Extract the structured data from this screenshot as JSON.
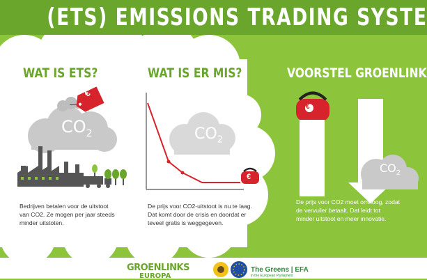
{
  "title": "(ETS) EMISSIONS TRADING SYSTEM",
  "sections": [
    {
      "heading": "WAT IS ETS?",
      "body_lines": [
        "Bedrijven betalen voor de uitstoot",
        "van CO2. Ze mogen per jaar steeds",
        "minder uitstoten."
      ]
    },
    {
      "heading": "WAT IS ER MIS?",
      "body_lines": [
        "De prijs voor CO2-uitstoot is nu te laag.",
        "Dat komt door de crisis en doordat er",
        "teveel gratis is weggegeven."
      ]
    },
    {
      "heading": "VOORSTEL GROENLINKS:",
      "body_lines": [
        "De prijs voor CO2 moet omhoog, zodat",
        "de vervuiler betaalt. Dat leidt tot",
        "minder uitstoot en meer innovatie."
      ]
    }
  ],
  "illustration": {
    "co2_label_main": "CO",
    "co2_subscript": "2",
    "euro_symbol": "€"
  },
  "footer": {
    "logo_groenlinks": "GROENLINKS",
    "logo_europa": "EUROPA",
    "greens_efa": "The Greens | EFA",
    "greens_sub": "in the European Parliament"
  },
  "colors": {
    "green_dark": "#6aa52c",
    "green_light": "#8cc43c",
    "red": "#d7232b",
    "cloud_grey": "#c9c9c9",
    "factory_grey": "#555555"
  }
}
